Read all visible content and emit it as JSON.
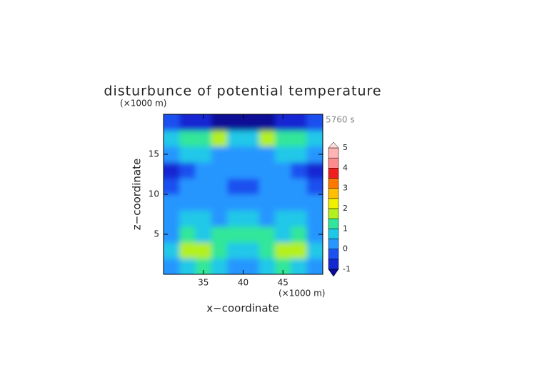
{
  "chart_data": {
    "type": "contour",
    "title": "disturbunce of potential temperature",
    "time_label": "5760 s",
    "x_label": "x−coordinate",
    "y_label": "z−coordinate",
    "x_unit": "(×1000 m)",
    "y_unit": "(×1000 m)",
    "xlim": [
      30,
      50
    ],
    "ylim": [
      0,
      20
    ],
    "xticks": [
      35,
      40,
      45
    ],
    "yticks": [
      5,
      10,
      15
    ],
    "x": [
      31,
      33,
      35,
      37,
      39,
      41,
      43,
      45,
      47,
      49
    ],
    "y": [
      1,
      3,
      5,
      7,
      9,
      11,
      13,
      15,
      17,
      19
    ],
    "z": [
      [
        0.3,
        0.9,
        1.4,
        0.6,
        0.4,
        0.4,
        0.6,
        1.4,
        0.9,
        0.3
      ],
      [
        0.6,
        1.6,
        1.9,
        1.0,
        0.6,
        0.6,
        1.0,
        1.9,
        1.6,
        0.6
      ],
      [
        0.4,
        1.0,
        0.7,
        1.3,
        1.0,
        1.0,
        1.3,
        0.7,
        1.0,
        0.4
      ],
      [
        0.3,
        0.5,
        0.8,
        0.4,
        0.6,
        0.6,
        0.4,
        0.8,
        0.5,
        0.3
      ],
      [
        0.2,
        0.3,
        0.2,
        0.4,
        0.3,
        0.3,
        0.4,
        0.2,
        0.3,
        0.2
      ],
      [
        -0.3,
        0.1,
        0.2,
        0.2,
        -0.2,
        -0.2,
        0.2,
        0.2,
        0.1,
        -0.3
      ],
      [
        -0.6,
        -0.2,
        0.2,
        0.1,
        0.0,
        0.0,
        0.1,
        0.2,
        -0.2,
        -0.6
      ],
      [
        0.3,
        0.5,
        0.7,
        0.4,
        0.3,
        0.3,
        0.4,
        0.7,
        0.5,
        0.3
      ],
      [
        0.6,
        1.2,
        1.0,
        1.6,
        0.9,
        0.9,
        1.6,
        1.0,
        1.2,
        0.6
      ],
      [
        -0.2,
        -0.7,
        -0.9,
        -1.1,
        -1.1,
        -1.1,
        -1.1,
        -0.9,
        -0.7,
        -0.2
      ]
    ],
    "levels": [
      -1,
      -0.5,
      0,
      0.5,
      1,
      1.5,
      2,
      2.5,
      3,
      3.5,
      4,
      4.5,
      5
    ],
    "colors": [
      "#1428d2",
      "#1e50f0",
      "#2896ff",
      "#20c8e8",
      "#30e69a",
      "#b4f01e",
      "#f0f000",
      "#ffbe00",
      "#ff7800",
      "#f01e1e",
      "#ff8c8c",
      "#ffb4b4"
    ],
    "under_color": "#0a0a96",
    "over_color": "#ffdcdc",
    "colorbar_ticks": [
      -1,
      0,
      1,
      2,
      3,
      4,
      5
    ]
  }
}
